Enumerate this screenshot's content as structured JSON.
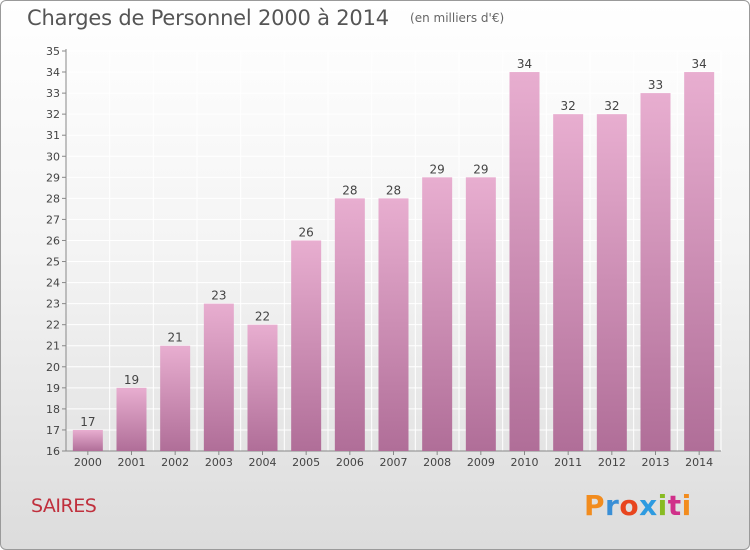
{
  "header": {
    "title": "Charges de Personnel 2000 à 2014",
    "unit": "(en milliers d'€)"
  },
  "footer": {
    "commune": "SAIRES",
    "brand": "Proxiti"
  },
  "colors": {
    "bar_light": "#e8aed0",
    "bar_dark": "#b06e98",
    "commune_text": "#c0303d",
    "brand_letters": [
      "#f28c1e",
      "#3a8fd6",
      "#e8451e",
      "#2e9be0",
      "#88bb22",
      "#d0308a",
      "#f28c1e"
    ]
  },
  "chart_data": {
    "type": "bar",
    "title": "Charges de Personnel 2000 à 2014",
    "subtitle": "(en milliers d'€)",
    "xlabel": "",
    "ylabel": "",
    "categories": [
      "2000",
      "2001",
      "2002",
      "2003",
      "2004",
      "2005",
      "2006",
      "2007",
      "2008",
      "2009",
      "2010",
      "2011",
      "2012",
      "2013",
      "2014"
    ],
    "values": [
      17,
      19,
      21,
      23,
      22,
      26,
      28,
      28,
      29,
      29,
      34,
      32,
      32,
      33,
      34
    ],
    "ylim": [
      16,
      35
    ],
    "yticks": [
      16,
      17,
      18,
      19,
      20,
      21,
      22,
      23,
      24,
      25,
      26,
      27,
      28,
      29,
      30,
      31,
      32,
      33,
      34,
      35
    ],
    "grid": true,
    "legend": "none"
  }
}
